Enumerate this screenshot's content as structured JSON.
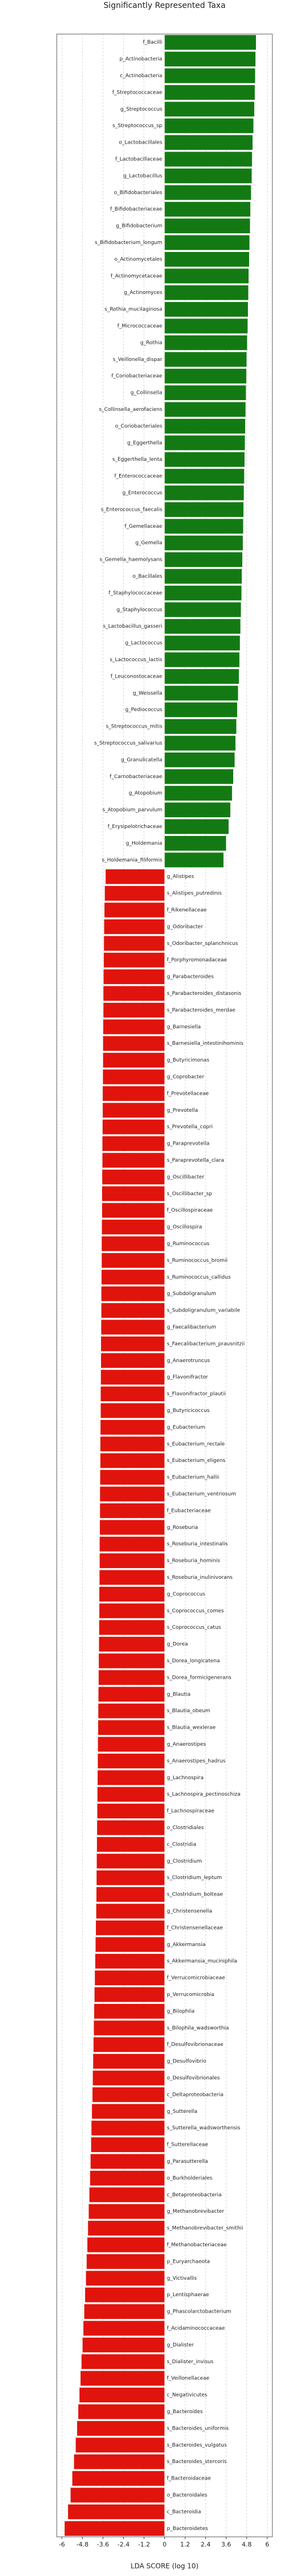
{
  "chart_data": {
    "type": "hbar_diverging",
    "title": "Significantly Represented Taxa",
    "xlabel": "LDA SCORE (log 10)",
    "xlim": [
      -6.3,
      6.3
    ],
    "xticks": [
      -6.0,
      -4.8,
      -3.6,
      -2.4,
      -1.2,
      0.0,
      1.2,
      2.4,
      3.6,
      4.8,
      6.0
    ],
    "grid": true,
    "groups": [
      {
        "color": "#137a13",
        "categories": [
          "f_Bacilli",
          "p_Actinobacteria",
          "c_Actinobacteria",
          "f_Streptococcaceae",
          "g_Streptococcus",
          "s_Streptococcus_sp",
          "o_Lactobacillales",
          "f_Lactobacillaceae",
          "g_Lactobacillus",
          "o_Bifidobacteriales",
          "f_Bifidobacteriaceae",
          "g_Bifidobacterium",
          "s_Bifidobacterium_longum",
          "o_Actinomycetales",
          "f_Actinomycetaceae",
          "g_Actinomyces",
          "s_Rothia_mucilaginosa",
          "f_Micrococcaceae",
          "g_Rothia",
          "s_Veillonella_dispar",
          "f_Coriobacteriaceae",
          "g_Collinsella",
          "s_Collinsella_aerofaciens",
          "o_Coriobacteriales",
          "g_Eggerthella",
          "s_Eggerthella_lenta",
          "f_Enterococcaceae",
          "g_Enterococcus",
          "s_Enterococcus_faecalis",
          "f_Gemellaceae",
          "g_Gemella",
          "s_Gemella_haemolysans",
          "o_Bacillales",
          "f_Staphylococcaceae",
          "g_Staphylococcus",
          "s_Lactobacillus_gasseri",
          "g_Lactococcus",
          "s_Lactococcus_lactis",
          "f_Leuconostocaceae",
          "g_Weissella",
          "g_Pediococcus",
          "s_Streptococcus_mitis",
          "s_Streptococcus_salivarius",
          "g_Granulicatella",
          "f_Carnobacteriaceae",
          "g_Atopobium",
          "s_Atopobium_parvulum",
          "f_Erysipelotrichaceae",
          "g_Holdemania",
          "s_Holdemania_filiformis"
        ],
        "values": [
          5.35,
          5.32,
          5.3,
          5.28,
          5.25,
          5.2,
          5.15,
          5.12,
          5.1,
          5.06,
          5.02,
          5.0,
          4.97,
          4.95,
          4.92,
          4.9,
          4.88,
          4.86,
          4.83,
          4.8,
          4.78,
          4.76,
          4.74,
          4.72,
          4.7,
          4.68,
          4.66,
          4.64,
          4.62,
          4.6,
          4.58,
          4.55,
          4.52,
          4.5,
          4.47,
          4.44,
          4.41,
          4.38,
          4.35,
          4.3,
          4.25,
          4.2,
          4.15,
          4.1,
          4.02,
          3.95,
          3.85,
          3.75,
          3.6,
          3.45
        ]
      },
      {
        "color": "#e0140c",
        "categories": [
          "g_Alistipes",
          "s_Alistipes_putredinis",
          "f_Rikenellaceae",
          "g_Odoribacter",
          "s_Odoribacter_splanchnicus",
          "f_Porphyromonadaceae",
          "g_Parabacteroides",
          "s_Parabacteroides_distasonis",
          "s_Parabacteroides_merdae",
          "g_Barnesiella",
          "s_Barnesiella_intestinihominis",
          "g_Butyricimonas",
          "g_Coprobacter",
          "f_Prevotellaceae",
          "g_Prevotella",
          "s_Prevotella_copri",
          "g_Paraprevotella",
          "s_Paraprevotella_clara",
          "g_Oscillibacter",
          "s_Oscillibacter_sp",
          "f_Oscillospiraceae",
          "g_Oscillospira",
          "g_Ruminococcus",
          "s_Ruminococcus_bromii",
          "s_Ruminococcus_callidus",
          "g_Subdoligranulum",
          "s_Subdoligranulum_variabile",
          "g_Faecalibacterium",
          "s_Faecalibacterium_prausnitzii",
          "g_Anaerotruncus",
          "g_Flavonifractor",
          "s_Flavonifractor_plautii",
          "g_Butyricicoccus",
          "g_Eubacterium",
          "s_Eubacterium_rectale",
          "s_Eubacterium_eligens",
          "s_Eubacterium_hallii",
          "s_Eubacterium_ventriosum",
          "f_Eubacteriaceae",
          "g_Roseburia",
          "s_Roseburia_intestinalis",
          "s_Roseburia_hominis",
          "s_Roseburia_inulinivorans",
          "g_Coprococcus",
          "s_Coprococcus_comes",
          "s_Coprococcus_catus",
          "g_Dorea",
          "s_Dorea_longicatena",
          "s_Dorea_formicigenerans",
          "g_Blautia",
          "s_Blautia_obeum",
          "s_Blautia_wexlerae",
          "g_Anaerostipes",
          "s_Anaerostipes_hadrus",
          "g_Lachnospira",
          "s_Lachnospira_pectinoschiza",
          "f_Lachnospiraceae",
          "o_Clostridiales",
          "c_Clostridia",
          "g_Clostridium",
          "s_Clostridium_leptum",
          "s_Clostridium_bolteae",
          "g_Christensenella",
          "f_Christensenellaceae",
          "g_Akkermansia",
          "s_Akkermansia_muciniphila",
          "f_Verrucomicrobiaceae",
          "p_Verrucomicrobia",
          "g_Bilophila",
          "s_Bilophila_wadsworthia",
          "f_Desulfovibrionaceae",
          "g_Desulfovibrio",
          "o_Desulfovibrionales",
          "c_Deltaproteobacteria",
          "g_Sutterella",
          "s_Sutterella_wadsworthensis",
          "f_Sutterellaceae",
          "g_Parasutterella",
          "o_Burkholderiales",
          "c_Betaproteobacteria",
          "g_Methanobrevibacter",
          "s_Methanobrevibacter_smithii",
          "f_Methanobacteriaceae",
          "p_Euryarchaeota",
          "g_Victivallis",
          "p_Lentisphaerae",
          "g_Phascolarctobacterium",
          "f_Acidaminococcaceae",
          "g_Dialister",
          "s_Dialister_invisus",
          "f_Veillonellaceae",
          "c_Negativicutes",
          "g_Bacteroides",
          "s_Bacteroides_uniformis",
          "s_Bacteroides_vulgatus",
          "s_Bacteroides_stercoris",
          "f_Bacteroidaceae",
          "o_Bacteroidales",
          "c_Bacteroidia",
          "p_Bacteroidetes"
        ],
        "values": [
          -3.45,
          -3.5,
          -3.52,
          -3.54,
          -3.55,
          -3.56,
          -3.57,
          -3.58,
          -3.58,
          -3.59,
          -3.6,
          -3.6,
          -3.61,
          -3.62,
          -3.62,
          -3.63,
          -3.64,
          -3.64,
          -3.65,
          -3.66,
          -3.66,
          -3.67,
          -3.68,
          -3.68,
          -3.69,
          -3.7,
          -3.7,
          -3.71,
          -3.72,
          -3.72,
          -3.73,
          -3.74,
          -3.74,
          -3.75,
          -3.76,
          -3.76,
          -3.77,
          -3.78,
          -3.78,
          -3.79,
          -3.8,
          -3.8,
          -3.81,
          -3.82,
          -3.82,
          -3.83,
          -3.84,
          -3.85,
          -3.86,
          -3.87,
          -3.88,
          -3.89,
          -3.9,
          -3.91,
          -3.92,
          -3.93,
          -3.94,
          -3.95,
          -3.96,
          -3.97,
          -3.98,
          -3.99,
          -4.0,
          -4.02,
          -4.04,
          -4.06,
          -4.08,
          -4.1,
          -4.12,
          -4.14,
          -4.16,
          -4.18,
          -4.2,
          -4.22,
          -4.25,
          -4.28,
          -4.3,
          -4.33,
          -4.36,
          -4.4,
          -4.44,
          -4.48,
          -4.52,
          -4.56,
          -4.6,
          -4.65,
          -4.7,
          -4.75,
          -4.8,
          -4.86,
          -4.92,
          -4.98,
          -5.05,
          -5.12,
          -5.2,
          -5.3,
          -5.4,
          -5.5,
          -5.65,
          -5.85
        ]
      }
    ]
  }
}
